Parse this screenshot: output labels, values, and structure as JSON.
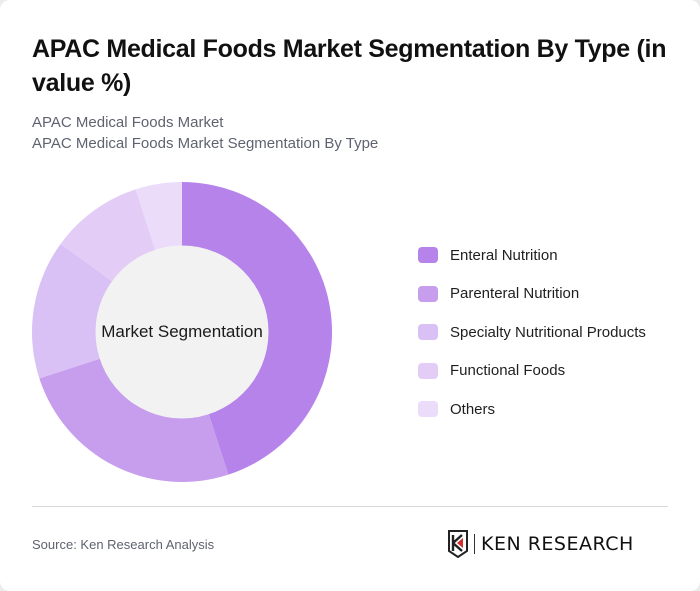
{
  "header": {
    "title": "APAC Medical Foods Market Segmentation By Type (in value %)",
    "subtitle_line1": "APAC Medical Foods Market",
    "subtitle_line2": "APAC Medical Foods Market Segmentation By Type"
  },
  "chart": {
    "center_label": "Market Segmentation"
  },
  "legend": {
    "items": [
      {
        "label": "Enteral Nutrition",
        "color": "#b583ea"
      },
      {
        "label": "Parenteral Nutrition",
        "color": "#c79ded"
      },
      {
        "label": "Specialty Nutritional Products",
        "color": "#dac1f5"
      },
      {
        "label": "Functional Foods",
        "color": "#e3cdf7"
      },
      {
        "label": "Others",
        "color": "#ebdcfa"
      }
    ]
  },
  "footer": {
    "source": "Source: Ken Research Analysis",
    "logo_text": "KEN RESEARCH"
  },
  "chart_data": {
    "type": "pie",
    "title": "APAC Medical Foods Market Segmentation By Type (in value %)",
    "subtitle": "APAC Medical Foods Market Segmentation By Type",
    "center_label": "Market Segmentation",
    "donut": true,
    "categories": [
      "Enteral Nutrition",
      "Parenteral Nutrition",
      "Specialty Nutritional Products",
      "Functional Foods",
      "Others"
    ],
    "values": [
      45,
      25,
      15,
      10,
      5
    ],
    "colors": [
      "#b583ea",
      "#c79ded",
      "#dac1f5",
      "#e3cdf7",
      "#ebdcfa"
    ],
    "legend_position": "right",
    "unit": "%"
  }
}
